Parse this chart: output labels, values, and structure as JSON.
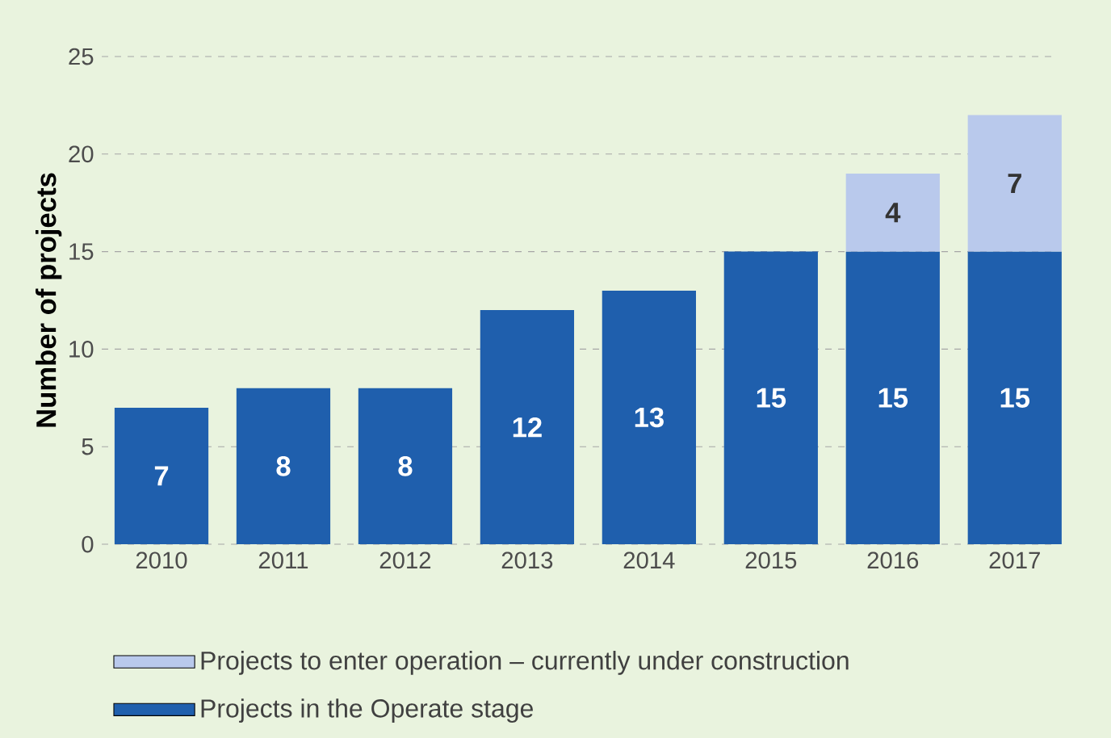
{
  "chart_data": {
    "type": "bar",
    "stacked": true,
    "ylabel": "Number of projects",
    "categories": [
      "2010",
      "2011",
      "2012",
      "2013",
      "2014",
      "2015",
      "2016",
      "2017"
    ],
    "series": [
      {
        "name": "Projects in the Operate stage",
        "color": "#1f5fad",
        "values": [
          7,
          8,
          8,
          12,
          13,
          15,
          15,
          15
        ]
      },
      {
        "name": "Projects to enter operation – currently under construction",
        "color": "#b9c9ec",
        "values": [
          null,
          null,
          null,
          null,
          null,
          null,
          4,
          7
        ]
      }
    ],
    "ylim": [
      0,
      25
    ],
    "yticks": [
      0,
      5,
      10,
      15,
      20,
      25
    ],
    "grid": "y",
    "legend": "bottom",
    "data_labels": true
  }
}
